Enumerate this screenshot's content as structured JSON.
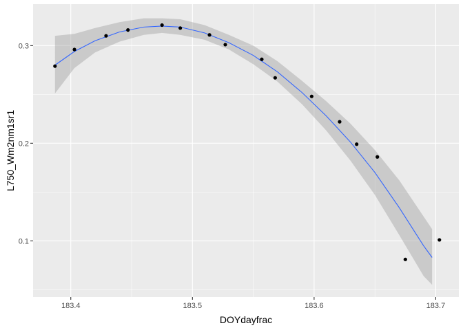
{
  "chart_data": {
    "type": "scatter",
    "xlabel": "DOYdayfrac",
    "ylabel": "L750_Wm2nm1sr1",
    "xlim": [
      183.369,
      183.719
    ],
    "ylim": [
      0.0425,
      0.3425
    ],
    "x_ticks": [
      183.4,
      183.5,
      183.6,
      183.7
    ],
    "x_tick_labels": [
      "183.4",
      "183.5",
      "183.6",
      "183.7"
    ],
    "y_ticks": [
      0.1,
      0.2,
      0.3
    ],
    "y_tick_labels": [
      "0.1",
      "0.2",
      "0.3"
    ],
    "grid": true,
    "colors": {
      "panel_background": "#ebebeb",
      "grid": "#ffffff",
      "points": "#000000",
      "smooth_line": "#3366ff",
      "confidence_band": "#999999"
    },
    "points": {
      "x": [
        183.387,
        183.403,
        183.429,
        183.447,
        183.475,
        183.49,
        183.514,
        183.527,
        183.557,
        183.568,
        183.598,
        183.621,
        183.635,
        183.652,
        183.675,
        183.703
      ],
      "y": [
        0.279,
        0.296,
        0.31,
        0.316,
        0.321,
        0.318,
        0.311,
        0.301,
        0.286,
        0.267,
        0.248,
        0.222,
        0.199,
        0.186,
        0.081,
        0.101
      ]
    },
    "smooth": {
      "x": [
        183.387,
        183.403,
        183.42,
        183.44,
        183.46,
        183.475,
        183.49,
        183.51,
        183.53,
        183.55,
        183.57,
        183.59,
        183.61,
        183.63,
        183.65,
        183.67,
        183.69,
        183.697
      ],
      "y": [
        0.28,
        0.294,
        0.305,
        0.314,
        0.319,
        0.32,
        0.319,
        0.313,
        0.303,
        0.29,
        0.273,
        0.252,
        0.228,
        0.201,
        0.17,
        0.134,
        0.095,
        0.083
      ],
      "lower": [
        0.251,
        0.277,
        0.293,
        0.304,
        0.311,
        0.313,
        0.311,
        0.306,
        0.296,
        0.281,
        0.263,
        0.24,
        0.213,
        0.182,
        0.147,
        0.106,
        0.064,
        0.055
      ],
      "upper": [
        0.31,
        0.312,
        0.318,
        0.324,
        0.328,
        0.328,
        0.327,
        0.321,
        0.311,
        0.3,
        0.284,
        0.264,
        0.243,
        0.22,
        0.193,
        0.162,
        0.125,
        0.112
      ]
    }
  }
}
